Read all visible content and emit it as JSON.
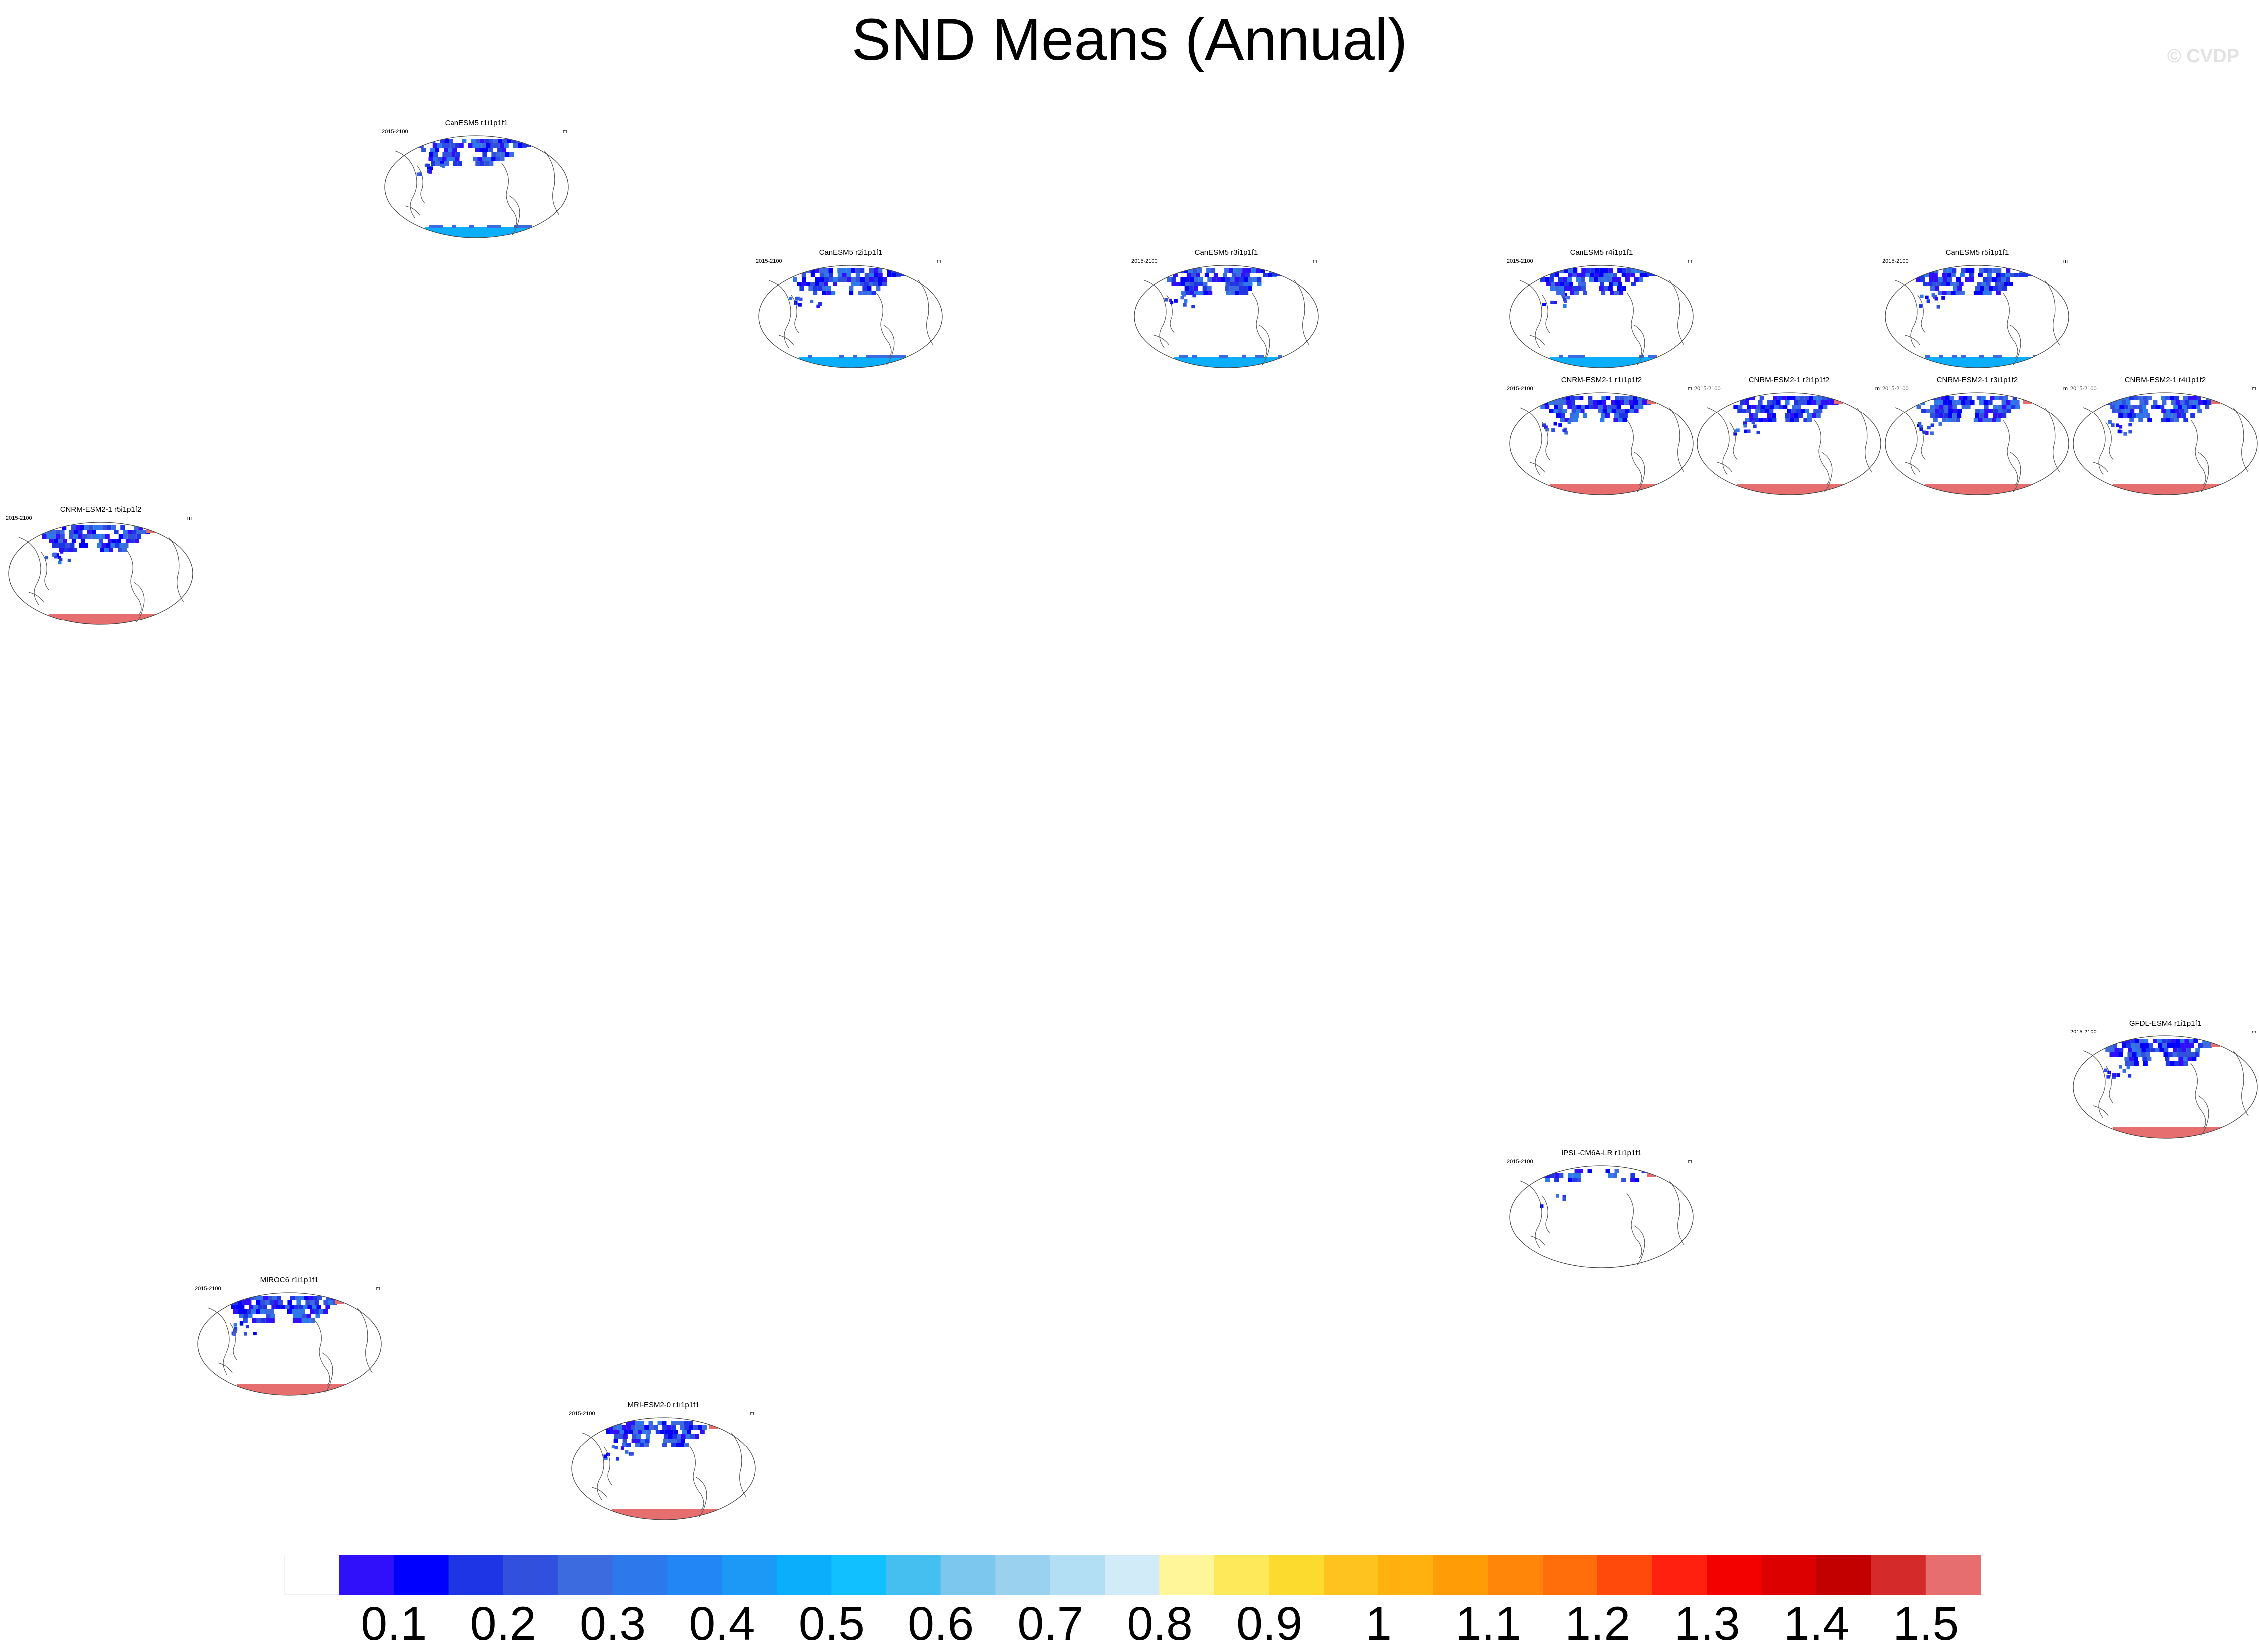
{
  "title": "SND Means (Annual)",
  "watermark": "© CVDP",
  "panels": [
    {
      "title": "CanESM5 r1i1p1f1",
      "years": "2015-2100",
      "units": "m",
      "north": "blue",
      "south": "lightblue"
    },
    {
      "title": "CanESM5 r2i1p1f1",
      "years": "2015-2100",
      "units": "m",
      "north": "blue",
      "south": "lightblue"
    },
    {
      "title": "CanESM5 r3i1p1f1",
      "years": "2015-2100",
      "units": "m",
      "north": "blue",
      "south": "lightblue"
    },
    {
      "title": "CanESM5 r4i1p1f1",
      "years": "2015-2100",
      "units": "m",
      "north": "blue",
      "south": "lightblue"
    },
    {
      "title": "CanESM5 r5i1p1f1",
      "years": "2015-2100",
      "units": "m",
      "north": "blue",
      "south": "lightblue"
    },
    {
      "title": "CNRM-ESM2-1 r1i1p1f2",
      "years": "2015-2100",
      "units": "m",
      "north": "blue",
      "south": "red"
    },
    {
      "title": "CNRM-ESM2-1 r2i1p1f2",
      "years": "2015-2100",
      "units": "m",
      "north": "blue",
      "south": "red"
    },
    {
      "title": "CNRM-ESM2-1 r3i1p1f2",
      "years": "2015-2100",
      "units": "m",
      "north": "blue",
      "south": "red"
    },
    {
      "title": "CNRM-ESM2-1 r4i1p1f2",
      "years": "2015-2100",
      "units": "m",
      "north": "blue",
      "south": "red"
    },
    {
      "title": "CNRM-ESM2-1 r5i1p1f2",
      "years": "2015-2100",
      "units": "m",
      "north": "blue",
      "south": "red"
    },
    {
      "title": "GFDL-ESM4 r1i1p1f1",
      "years": "2015-2100",
      "units": "m",
      "north": "blue",
      "south": "red"
    },
    {
      "title": "IPSL-CM6A-LR r1i1p1f1",
      "years": "2015-2100",
      "units": "m",
      "north": "sparse",
      "south": "none"
    },
    {
      "title": "MIROC6 r1i1p1f1",
      "years": "2015-2100",
      "units": "m",
      "north": "blue",
      "south": "red"
    },
    {
      "title": "MRI-ESM2-0 r1i1p1f1",
      "years": "2015-2100",
      "units": "m",
      "north": "blue",
      "south": "red"
    }
  ],
  "chart_data": {
    "type": "heatmap",
    "title": "SND Means (Annual)",
    "variable": "SND",
    "units": "m",
    "period": "2015-2100",
    "projection": "robinson",
    "colorbar": {
      "levels": [
        "0.1",
        "0.2",
        "0.3",
        "0.4",
        "0.5",
        "0.6",
        "0.7",
        "0.8",
        "0.9",
        "1",
        "1.1",
        "1.2",
        "1.3",
        "1.4",
        "1.5"
      ],
      "boundaries": [
        0.05,
        0.1,
        0.15,
        0.2,
        0.25,
        0.3,
        0.35,
        0.4,
        0.45,
        0.5,
        0.55,
        0.6,
        0.65,
        0.7,
        0.75,
        0.8,
        0.85,
        0.9,
        0.95,
        1.0,
        1.05,
        1.1,
        1.15,
        1.2,
        1.25,
        1.3,
        1.35,
        1.4,
        1.45,
        1.5
      ],
      "colors": [
        "#ffffff",
        "#3010fa",
        "#0000ff",
        "#1e35e6",
        "#3150dd",
        "#3c6be0",
        "#2d78ea",
        "#2286f5",
        "#1c98f6",
        "#0aaefa",
        "#10c0ff",
        "#45bff0",
        "#7cc7ed",
        "#9ad1ef",
        "#b3dff4",
        "#d1ebf8",
        "#fff69a",
        "#fde95a",
        "#fddb2e",
        "#fec31f",
        "#feb10f",
        "#ff9c06",
        "#ff8608",
        "#ff6e0b",
        "#ff4a0c",
        "#ff2010",
        "#f30000",
        "#dc0000",
        "#c20000",
        "#d52a2a",
        "#e66e6e"
      ]
    },
    "panels": [
      "CanESM5 r1i1p1f1",
      "CanESM5 r2i1p1f1",
      "CanESM5 r3i1p1f1",
      "CanESM5 r4i1p1f1",
      "CanESM5 r5i1p1f1",
      "CNRM-ESM2-1 r1i1p1f2",
      "CNRM-ESM2-1 r2i1p1f2",
      "CNRM-ESM2-1 r3i1p1f2",
      "CNRM-ESM2-1 r4i1p1f2",
      "CNRM-ESM2-1 r5i1p1f2",
      "GFDL-ESM4 r1i1p1f1",
      "IPSL-CM6A-LR r1i1p1f1",
      "MIROC6 r1i1p1f1",
      "MRI-ESM2-0 r1i1p1f1"
    ]
  }
}
